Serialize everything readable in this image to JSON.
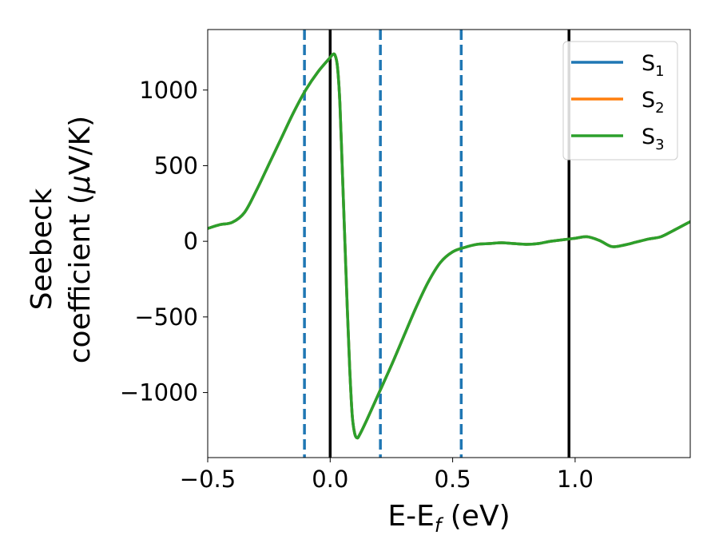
{
  "chart_data": {
    "type": "line",
    "xlabel": {
      "main": "E-E",
      "sub": "f",
      "unit": " (eV)"
    },
    "ylabel": {
      "line1": "Seebeck",
      "line2_main": "coefficient  (",
      "line2_mu": "μ",
      "line2_unit": "V/K)"
    },
    "xlim": [
      -0.5,
      1.47
    ],
    "ylim": [
      -1430,
      1400
    ],
    "xticks": [
      {
        "value": -0.5,
        "label": "−0.5"
      },
      {
        "value": 0.0,
        "label": "0.0"
      },
      {
        "value": 0.5,
        "label": "0.5"
      },
      {
        "value": 1.0,
        "label": "1.0"
      }
    ],
    "yticks": [
      {
        "value": -1000,
        "label": "−1000"
      },
      {
        "value": -500,
        "label": "−500"
      },
      {
        "value": 0,
        "label": "0"
      },
      {
        "value": 500,
        "label": "500"
      },
      {
        "value": 1000,
        "label": "1000"
      }
    ],
    "vlines_solid": [
      0.0,
      0.975
    ],
    "vlines_dashed": [
      -0.105,
      0.205,
      0.535
    ],
    "grid": false,
    "legend_position": "top-right",
    "series": [
      {
        "name": "S",
        "sub": "1",
        "color": "#1f77b4",
        "x": [
          -0.5,
          -0.45,
          -0.4,
          -0.35,
          -0.3,
          -0.25,
          -0.2,
          -0.15,
          -0.1,
          -0.05,
          0.0,
          0.01,
          0.02,
          0.03,
          0.04,
          0.05,
          0.06,
          0.07,
          0.08,
          0.09,
          0.1,
          0.11,
          0.12,
          0.15,
          0.2,
          0.25,
          0.3,
          0.35,
          0.4,
          0.45,
          0.5,
          0.55,
          0.6,
          0.65,
          0.7,
          0.75,
          0.8,
          0.85,
          0.9,
          0.95,
          1.0,
          1.05,
          1.1,
          1.15,
          1.2,
          1.25,
          1.3,
          1.35,
          1.4,
          1.47
        ],
        "y": [
          85,
          110,
          125,
          190,
          340,
          510,
          680,
          850,
          1000,
          1120,
          1215,
          1235,
          1230,
          1150,
          900,
          450,
          0,
          -450,
          -850,
          -1150,
          -1270,
          -1300,
          -1280,
          -1180,
          -1000,
          -820,
          -630,
          -440,
          -270,
          -140,
          -70,
          -40,
          -20,
          -15,
          -10,
          -15,
          -20,
          -15,
          0,
          10,
          20,
          30,
          5,
          -35,
          -25,
          -5,
          15,
          30,
          70,
          130
        ]
      },
      {
        "name": "S",
        "sub": "2",
        "color": "#ff7f0e",
        "x": [
          -0.5,
          -0.45,
          -0.4,
          -0.35,
          -0.3,
          -0.25,
          -0.2,
          -0.15,
          -0.1,
          -0.05,
          0.0,
          0.01,
          0.02,
          0.03,
          0.04,
          0.05,
          0.06,
          0.07,
          0.08,
          0.09,
          0.1,
          0.11,
          0.12,
          0.15,
          0.2,
          0.25,
          0.3,
          0.35,
          0.4,
          0.45,
          0.5,
          0.55,
          0.6,
          0.65,
          0.7,
          0.75,
          0.8,
          0.85,
          0.9,
          0.95,
          1.0,
          1.05,
          1.1,
          1.15,
          1.2,
          1.25,
          1.3,
          1.35,
          1.4,
          1.47
        ],
        "y": [
          85,
          110,
          125,
          190,
          340,
          510,
          680,
          850,
          1000,
          1120,
          1215,
          1235,
          1230,
          1150,
          900,
          450,
          0,
          -450,
          -850,
          -1150,
          -1270,
          -1300,
          -1280,
          -1180,
          -1000,
          -820,
          -630,
          -440,
          -270,
          -140,
          -70,
          -40,
          -20,
          -15,
          -10,
          -15,
          -20,
          -15,
          0,
          10,
          20,
          30,
          5,
          -35,
          -25,
          -5,
          15,
          30,
          70,
          130
        ]
      },
      {
        "name": "S",
        "sub": "3",
        "color": "#2ca02c",
        "x": [
          -0.5,
          -0.45,
          -0.4,
          -0.35,
          -0.3,
          -0.25,
          -0.2,
          -0.15,
          -0.1,
          -0.05,
          0.0,
          0.01,
          0.02,
          0.03,
          0.04,
          0.05,
          0.06,
          0.07,
          0.08,
          0.09,
          0.1,
          0.11,
          0.12,
          0.15,
          0.2,
          0.25,
          0.3,
          0.35,
          0.4,
          0.45,
          0.5,
          0.55,
          0.6,
          0.65,
          0.7,
          0.75,
          0.8,
          0.85,
          0.9,
          0.95,
          1.0,
          1.05,
          1.1,
          1.15,
          1.2,
          1.25,
          1.3,
          1.35,
          1.4,
          1.47
        ],
        "y": [
          85,
          110,
          125,
          190,
          340,
          510,
          680,
          850,
          1000,
          1120,
          1215,
          1235,
          1230,
          1150,
          900,
          450,
          0,
          -450,
          -850,
          -1150,
          -1270,
          -1300,
          -1280,
          -1180,
          -1000,
          -820,
          -630,
          -440,
          -270,
          -140,
          -70,
          -40,
          -20,
          -15,
          -10,
          -15,
          -20,
          -15,
          0,
          10,
          20,
          30,
          5,
          -35,
          -25,
          -5,
          15,
          30,
          70,
          130
        ]
      }
    ]
  }
}
